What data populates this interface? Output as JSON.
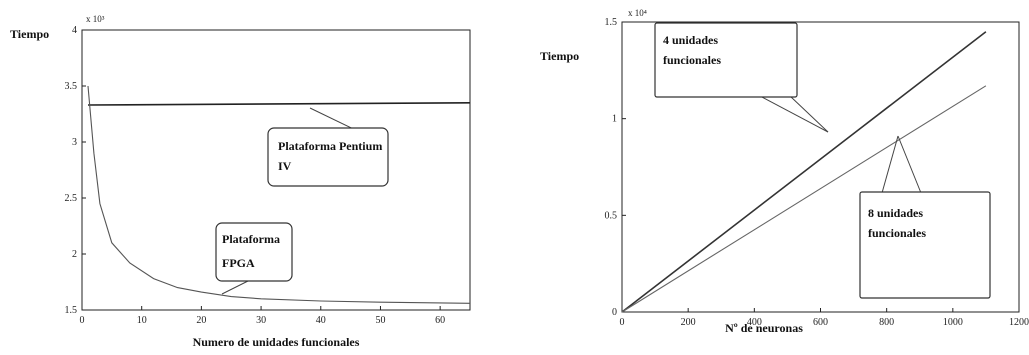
{
  "chart_data": [
    {
      "type": "line",
      "title": "",
      "ylabel": "Tiempo",
      "xlabel": "Numero de unidades funcionales",
      "y_multiplier": "x 10³",
      "xlim": [
        0,
        65
      ],
      "ylim": [
        1.5,
        4
      ],
      "xticks": [
        "0",
        "10",
        "20",
        "30",
        "40",
        "50",
        "60"
      ],
      "yticks": [
        "1.5",
        "2",
        "2.5",
        "3",
        "3.5",
        "4"
      ],
      "series": [
        {
          "name": "Plataforma Pentium IV",
          "color": "#222222",
          "x": [
            1,
            65
          ],
          "y": [
            3.33,
            3.35
          ]
        },
        {
          "name": "Plataforma FPGA",
          "color": "#555555",
          "x": [
            1,
            2,
            3,
            5,
            8,
            12,
            16,
            20,
            25,
            30,
            40,
            50,
            65
          ],
          "y": [
            3.5,
            2.9,
            2.45,
            2.1,
            1.92,
            1.78,
            1.7,
            1.66,
            1.62,
            1.6,
            1.58,
            1.57,
            1.56
          ]
        }
      ],
      "annotations": [
        {
          "text_lines": [
            "Plataforma Pentium",
            "IV"
          ]
        },
        {
          "text_lines": [
            "Plataforma",
            "FPGA"
          ]
        }
      ]
    },
    {
      "type": "line",
      "title": "",
      "ylabel": "Tiempo",
      "xlabel": "Nº de neuronas",
      "y_multiplier": "x 10⁴",
      "xlim": [
        0,
        1200
      ],
      "ylim": [
        0,
        1.5
      ],
      "xticks": [
        "0",
        "200",
        "400",
        "600",
        "800",
        "1000",
        "1200"
      ],
      "yticks": [
        "0",
        "0.5",
        "1",
        "1.5"
      ],
      "series": [
        {
          "name": "4 unidades funcionales",
          "color": "#333333",
          "x": [
            0,
            1100
          ],
          "y": [
            0,
            1.45
          ]
        },
        {
          "name": "8 unidades funcionales",
          "color": "#666666",
          "x": [
            0,
            1100
          ],
          "y": [
            0,
            1.17
          ]
        }
      ],
      "annotations": [
        {
          "text_lines": [
            "4 unidades",
            "funcionales"
          ]
        },
        {
          "text_lines": [
            "8 unidades",
            "funcionales"
          ]
        }
      ]
    }
  ]
}
